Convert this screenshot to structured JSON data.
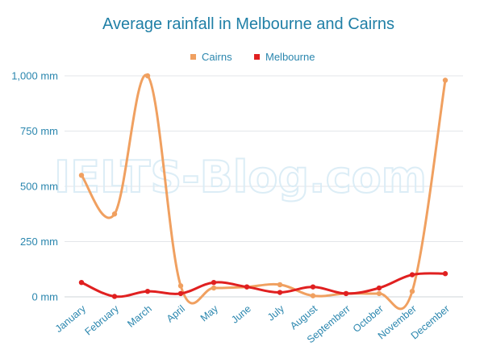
{
  "chart_data": {
    "type": "line",
    "title": "Average rainfall in Melbourne and Cairns",
    "categories": [
      "January",
      "February",
      "March",
      "April",
      "May",
      "June",
      "July",
      "August",
      "Septemberr",
      "October",
      "November",
      "December"
    ],
    "series": [
      {
        "name": "Cairns",
        "color": "#f0a060",
        "values": [
          550,
          375,
          1000,
          50,
          40,
          45,
          55,
          5,
          15,
          15,
          25,
          980
        ]
      },
      {
        "name": "Melbourne",
        "color": "#e02020",
        "values": [
          65,
          2,
          25,
          15,
          65,
          45,
          20,
          45,
          15,
          40,
          100,
          105
        ]
      }
    ],
    "yticks": [
      {
        "value": 0,
        "label": "0 mm"
      },
      {
        "value": 250,
        "label": "250 mm"
      },
      {
        "value": 500,
        "label": "500 mm"
      },
      {
        "value": 750,
        "label": "750 mm"
      },
      {
        "value": 1000,
        "label": "1,000 mm"
      }
    ],
    "ylim": [
      0,
      1000
    ],
    "grid": true,
    "legend_position": "top-center",
    "watermark": "IELTS-Blog.com"
  }
}
